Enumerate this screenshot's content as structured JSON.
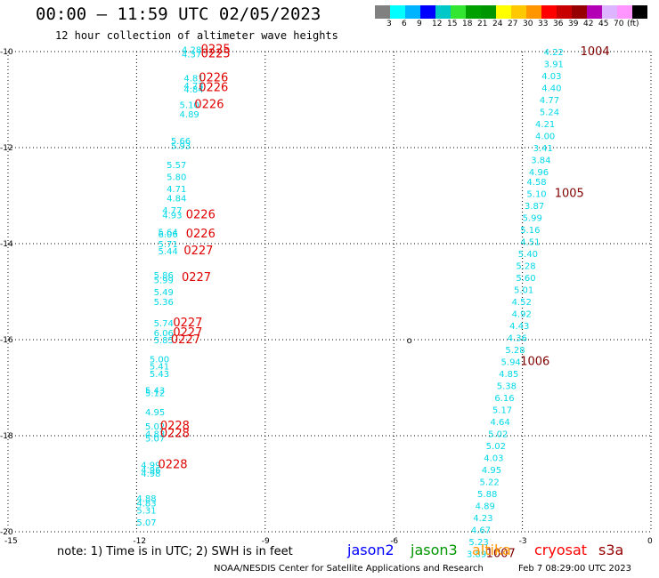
{
  "header": {
    "title": "00:00 – 11:59 UTC 02/05/2023",
    "subtitle": "12 hour collection of altimeter wave heights"
  },
  "scale": {
    "colors": [
      "#808080",
      "#00ffff",
      "#00b4ff",
      "#0000ff",
      "#00c8c8",
      "#32e632",
      "#00a000",
      "#009600",
      "#ffff00",
      "#ffc800",
      "#ff9600",
      "#ff0000",
      "#c80000",
      "#960000",
      "#b400b4",
      "#dcb4ff",
      "#ff96ff",
      "#000000"
    ],
    "labels": [
      "3",
      "6",
      "9",
      "12",
      "15",
      "18",
      "21",
      "24",
      "27",
      "30",
      "33",
      "36",
      "39",
      "42",
      "45",
      "70",
      "(ft)"
    ]
  },
  "map": {
    "lon_ticks": [
      -15,
      -12,
      -9,
      -6,
      -3,
      0
    ],
    "lat_ticks": [
      -10,
      -12,
      -14,
      -16,
      -18,
      -20
    ],
    "lon_labels": [
      "-15",
      "-12",
      "-9",
      "-6",
      "-3",
      "0"
    ],
    "lat_labels": [
      "-10",
      "-12",
      "-14",
      "-16",
      "-18",
      "-20"
    ],
    "lon_range": [
      -15,
      0
    ],
    "lat_range": [
      -20,
      -10
    ],
    "land_marker": {
      "label": "o",
      "lon": -5.7,
      "lat": -16.0
    },
    "track_west_swh": [
      {
        "lon": -10.95,
        "lat": -9.95,
        "v": "4.28"
      },
      {
        "lon": -10.95,
        "lat": -10.05,
        "v": "4.37"
      },
      {
        "lon": -10.9,
        "lat": -10.55,
        "v": "4.81"
      },
      {
        "lon": -10.9,
        "lat": -10.7,
        "v": "4.73"
      },
      {
        "lon": -10.9,
        "lat": -10.78,
        "v": "4.84"
      },
      {
        "lon": -11.0,
        "lat": -11.1,
        "v": "5.10"
      },
      {
        "lon": -11.0,
        "lat": -11.3,
        "v": "4.89"
      },
      {
        "lon": -11.2,
        "lat": -11.85,
        "v": "5.66"
      },
      {
        "lon": -11.2,
        "lat": -11.95,
        "v": "5.93"
      },
      {
        "lon": -11.3,
        "lat": -12.35,
        "v": "5.57"
      },
      {
        "lon": -11.3,
        "lat": -12.6,
        "v": "5.80"
      },
      {
        "lon": -11.3,
        "lat": -12.85,
        "v": "4.71"
      },
      {
        "lon": -11.3,
        "lat": -13.05,
        "v": "4.84"
      },
      {
        "lon": -11.4,
        "lat": -13.3,
        "v": "4.77"
      },
      {
        "lon": -11.4,
        "lat": -13.4,
        "v": "4.93"
      },
      {
        "lon": -11.5,
        "lat": -13.75,
        "v": "5.64"
      },
      {
        "lon": -11.5,
        "lat": -13.8,
        "v": "6.06"
      },
      {
        "lon": -11.5,
        "lat": -14.0,
        "v": "5.71"
      },
      {
        "lon": -11.5,
        "lat": -14.15,
        "v": "5.44"
      },
      {
        "lon": -11.6,
        "lat": -14.65,
        "v": "5.86"
      },
      {
        "lon": -11.6,
        "lat": -14.75,
        "v": "5.99"
      },
      {
        "lon": -11.6,
        "lat": -15.0,
        "v": "5.49"
      },
      {
        "lon": -11.6,
        "lat": -15.2,
        "v": "5.36"
      },
      {
        "lon": -11.6,
        "lat": -15.65,
        "v": "5.74"
      },
      {
        "lon": -11.6,
        "lat": -15.85,
        "v": "6.06"
      },
      {
        "lon": -11.6,
        "lat": -16.0,
        "v": "5.85"
      },
      {
        "lon": -11.7,
        "lat": -16.4,
        "v": "5.00"
      },
      {
        "lon": -11.7,
        "lat": -16.55,
        "v": "5.41"
      },
      {
        "lon": -11.7,
        "lat": -16.7,
        "v": "5.43"
      },
      {
        "lon": -11.8,
        "lat": -17.05,
        "v": "5.43"
      },
      {
        "lon": -11.8,
        "lat": -17.1,
        "v": "5.12"
      },
      {
        "lon": -11.8,
        "lat": -17.5,
        "v": "4.95"
      },
      {
        "lon": -11.8,
        "lat": -17.8,
        "v": "5.02"
      },
      {
        "lon": -11.8,
        "lat": -17.95,
        "v": "4.83"
      },
      {
        "lon": -11.8,
        "lat": -18.05,
        "v": "5.07"
      },
      {
        "lon": -11.9,
        "lat": -18.6,
        "v": "4.99"
      },
      {
        "lon": -11.9,
        "lat": -18.7,
        "v": "4.96"
      },
      {
        "lon": -11.9,
        "lat": -18.78,
        "v": "4.98"
      },
      {
        "lon": -12.0,
        "lat": -19.3,
        "v": "4.88"
      },
      {
        "lon": -12.0,
        "lat": -19.4,
        "v": "4.83"
      },
      {
        "lon": -12.0,
        "lat": -19.55,
        "v": "5.31"
      },
      {
        "lon": -12.0,
        "lat": -19.8,
        "v": "5.07"
      }
    ],
    "track_west_labels": [
      {
        "lon": -10.5,
        "lat": -9.95,
        "v": "0225"
      },
      {
        "lon": -10.5,
        "lat": -10.05,
        "v": "0225"
      },
      {
        "lon": -10.55,
        "lat": -10.55,
        "v": "0226"
      },
      {
        "lon": -10.55,
        "lat": -10.75,
        "v": "0226"
      },
      {
        "lon": -10.65,
        "lat": -11.1,
        "v": "0226"
      },
      {
        "lon": -10.85,
        "lat": -13.4,
        "v": "0226"
      },
      {
        "lon": -10.85,
        "lat": -13.8,
        "v": "0226"
      },
      {
        "lon": -10.9,
        "lat": -14.15,
        "v": "0227"
      },
      {
        "lon": -10.95,
        "lat": -14.7,
        "v": "0227"
      },
      {
        "lon": -11.15,
        "lat": -15.65,
        "v": "0227"
      },
      {
        "lon": -11.15,
        "lat": -15.85,
        "v": "0227"
      },
      {
        "lon": -11.2,
        "lat": -16.0,
        "v": "0227"
      },
      {
        "lon": -11.45,
        "lat": -17.8,
        "v": "0228"
      },
      {
        "lon": -11.45,
        "lat": -17.95,
        "v": "0228"
      },
      {
        "lon": -11.5,
        "lat": -18.6,
        "v": "0228"
      }
    ],
    "track_east_swh": [
      {
        "lon": -2.5,
        "lat": -10.0,
        "v": "4.22"
      },
      {
        "lon": -2.5,
        "lat": -10.25,
        "v": "3.91"
      },
      {
        "lon": -2.55,
        "lat": -10.5,
        "v": "4.03"
      },
      {
        "lon": -2.55,
        "lat": -10.75,
        "v": "4.40"
      },
      {
        "lon": -2.6,
        "lat": -11.0,
        "v": "4.77"
      },
      {
        "lon": -2.6,
        "lat": -11.25,
        "v": "5.24"
      },
      {
        "lon": -2.7,
        "lat": -11.5,
        "v": "4.21"
      },
      {
        "lon": -2.7,
        "lat": -11.75,
        "v": "4.00"
      },
      {
        "lon": -2.75,
        "lat": -12.0,
        "v": "3.41"
      },
      {
        "lon": -2.8,
        "lat": -12.25,
        "v": "3.84"
      },
      {
        "lon": -2.85,
        "lat": -12.5,
        "v": "4.96"
      },
      {
        "lon": -2.9,
        "lat": -12.7,
        "v": "4.58"
      },
      {
        "lon": -2.9,
        "lat": -12.95,
        "v": "5.10"
      },
      {
        "lon": -2.95,
        "lat": -13.2,
        "v": "3.87"
      },
      {
        "lon": -3.0,
        "lat": -13.45,
        "v": "5.99"
      },
      {
        "lon": -3.05,
        "lat": -13.7,
        "v": "5.16"
      },
      {
        "lon": -3.05,
        "lat": -13.95,
        "v": "4.51"
      },
      {
        "lon": -3.1,
        "lat": -14.2,
        "v": "5.40"
      },
      {
        "lon": -3.15,
        "lat": -14.45,
        "v": "5.28"
      },
      {
        "lon": -3.15,
        "lat": -14.7,
        "v": "5.60"
      },
      {
        "lon": -3.2,
        "lat": -14.95,
        "v": "5.01"
      },
      {
        "lon": -3.25,
        "lat": -15.2,
        "v": "4.52"
      },
      {
        "lon": -3.25,
        "lat": -15.45,
        "v": "4.92"
      },
      {
        "lon": -3.3,
        "lat": -15.7,
        "v": "4.43"
      },
      {
        "lon": -3.35,
        "lat": -15.95,
        "v": "4.36"
      },
      {
        "lon": -3.4,
        "lat": -16.2,
        "v": "5.28"
      },
      {
        "lon": -3.5,
        "lat": -16.45,
        "v": "5.94"
      },
      {
        "lon": -3.55,
        "lat": -16.7,
        "v": "4.85"
      },
      {
        "lon": -3.6,
        "lat": -16.95,
        "v": "5.38"
      },
      {
        "lon": -3.65,
        "lat": -17.2,
        "v": "6.16"
      },
      {
        "lon": -3.7,
        "lat": -17.45,
        "v": "5.17"
      },
      {
        "lon": -3.75,
        "lat": -17.7,
        "v": "4.64"
      },
      {
        "lon": -3.8,
        "lat": -17.95,
        "v": "5.02"
      },
      {
        "lon": -3.85,
        "lat": -18.2,
        "v": "5.02"
      },
      {
        "lon": -3.9,
        "lat": -18.45,
        "v": "4.03"
      },
      {
        "lon": -3.95,
        "lat": -18.7,
        "v": "4.95"
      },
      {
        "lon": -4.0,
        "lat": -18.95,
        "v": "5.22"
      },
      {
        "lon": -4.05,
        "lat": -19.2,
        "v": "5.88"
      },
      {
        "lon": -4.1,
        "lat": -19.45,
        "v": "4.89"
      },
      {
        "lon": -4.15,
        "lat": -19.7,
        "v": "4.23"
      },
      {
        "lon": -4.2,
        "lat": -19.95,
        "v": "4.67"
      },
      {
        "lon": -4.25,
        "lat": -20.2,
        "v": "5.23"
      },
      {
        "lon": -4.3,
        "lat": -20.45,
        "v": "3.89"
      }
    ],
    "track_east_labels": [
      {
        "lon": -1.65,
        "lat": -10.0,
        "v": "1004"
      },
      {
        "lon": -2.25,
        "lat": -12.95,
        "v": "1005"
      },
      {
        "lon": -3.05,
        "lat": -16.45,
        "v": "1006"
      },
      {
        "lon": -3.85,
        "lat": -20.45,
        "v": "1007"
      }
    ]
  },
  "legend": {
    "note": "note: 1) Time is in UTC; 2) SWH is in feet",
    "satellites": [
      {
        "name": "jason2",
        "color": "#0000ff"
      },
      {
        "name": "jason3",
        "color": "#009600"
      },
      {
        "name": "altika",
        "color": "#ff9600"
      },
      {
        "name": "cryosat",
        "color": "#ff0000"
      },
      {
        "name": "s3a",
        "color": "#960000"
      }
    ]
  },
  "footer": {
    "credit": "NOAA/NESDIS Center for Satellite Applications and Research",
    "timestamp": "Feb  7 08:29:00 UTC 2023"
  },
  "colors": {
    "swh_cyan": "#00d8e8",
    "label_red": "#e00000",
    "label_darkred": "#800000",
    "grid": "#000000"
  }
}
